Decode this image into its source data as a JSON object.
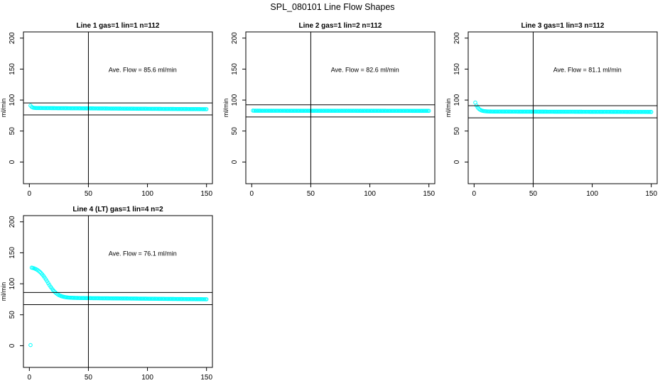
{
  "page_title": "SPL_080101  Line Flow Shapes",
  "colors": {
    "points": "#00ffff",
    "lines": "#000000",
    "background": "#ffffff"
  },
  "chart_data": [
    {
      "type": "scatter",
      "title": "Line 1 gas=1 lin=1 n=112",
      "xlabel": "",
      "ylabel": "ml/min",
      "xlim": [
        -5,
        155
      ],
      "ylim": [
        -35,
        210
      ],
      "xticks": [
        0,
        50,
        100,
        150
      ],
      "yticks": [
        0,
        50,
        100,
        150,
        200
      ],
      "annotation": "Ave. Flow =  85.6  ml/min",
      "hlines": [
        95.4,
        76.0
      ],
      "vline": 50,
      "curve": {
        "start": 91,
        "plateau_start": 87.2,
        "plateau_end": 85.3,
        "decay": 1.2
      },
      "points": [
        [
          1,
          91
        ],
        [
          2,
          88.5
        ],
        [
          3,
          87.3
        ],
        [
          4,
          87.1
        ],
        [
          75,
          86.4
        ],
        [
          150,
          85.3
        ]
      ]
    },
    {
      "type": "scatter",
      "title": "Line 2 gas=1 lin=2 n=112",
      "xlabel": "",
      "ylabel": "ml/min",
      "xlim": [
        -5,
        155
      ],
      "ylim": [
        -35,
        210
      ],
      "xticks": [
        0,
        50,
        100,
        150
      ],
      "yticks": [
        0,
        50,
        100,
        150,
        200
      ],
      "annotation": "Ave. Flow =  82.6  ml/min",
      "hlines": [
        92.4,
        72.8
      ],
      "vline": 50,
      "curve": {
        "start": 83,
        "plateau_start": 82.8,
        "plateau_end": 82.6,
        "decay": 1.0
      },
      "points": [
        [
          1,
          83
        ],
        [
          75,
          82.7
        ],
        [
          150,
          82.6
        ]
      ]
    },
    {
      "type": "scatter",
      "title": "Line 3 gas=1 lin=3 n=112",
      "xlabel": "",
      "ylabel": "ml/min",
      "xlim": [
        -5,
        155
      ],
      "ylim": [
        -35,
        210
      ],
      "xticks": [
        0,
        50,
        100,
        150
      ],
      "yticks": [
        0,
        50,
        100,
        150,
        200
      ],
      "annotation": "Ave. Flow =  81.1  ml/min",
      "hlines": [
        90.9,
        71.3
      ],
      "vline": 50,
      "curve": {
        "start": 96,
        "plateau_start": 81.5,
        "plateau_end": 80.8,
        "decay": 2.5
      },
      "points": [
        [
          1,
          96
        ],
        [
          2,
          92
        ],
        [
          3,
          88
        ],
        [
          5,
          84
        ],
        [
          8,
          82
        ],
        [
          75,
          81.1
        ],
        [
          150,
          80.8
        ]
      ]
    },
    {
      "type": "scatter",
      "title": "Line 4 (LT) gas=1 lin=4 n=2",
      "xlabel": "",
      "ylabel": "ml/min",
      "xlim": [
        -5,
        155
      ],
      "ylim": [
        -35,
        210
      ],
      "xticks": [
        0,
        50,
        100,
        150
      ],
      "yticks": [
        0,
        50,
        100,
        150,
        200
      ],
      "annotation": "Ave. Flow =  76.1  ml/min",
      "hlines": [
        85.9,
        66.3
      ],
      "vline": 50,
      "sigmoid": {
        "high": 128,
        "low": 77,
        "midpoint": 15.5,
        "width": 4.2,
        "tail_end": 75
      },
      "outliers": [
        [
          1,
          1
        ]
      ],
      "points": [
        [
          1,
          1
        ],
        [
          2,
          127
        ],
        [
          10,
          121
        ],
        [
          15,
          103
        ],
        [
          20,
          92
        ],
        [
          25,
          84
        ],
        [
          30,
          81
        ],
        [
          50,
          78
        ],
        [
          100,
          76
        ],
        [
          150,
          75
        ]
      ]
    }
  ]
}
